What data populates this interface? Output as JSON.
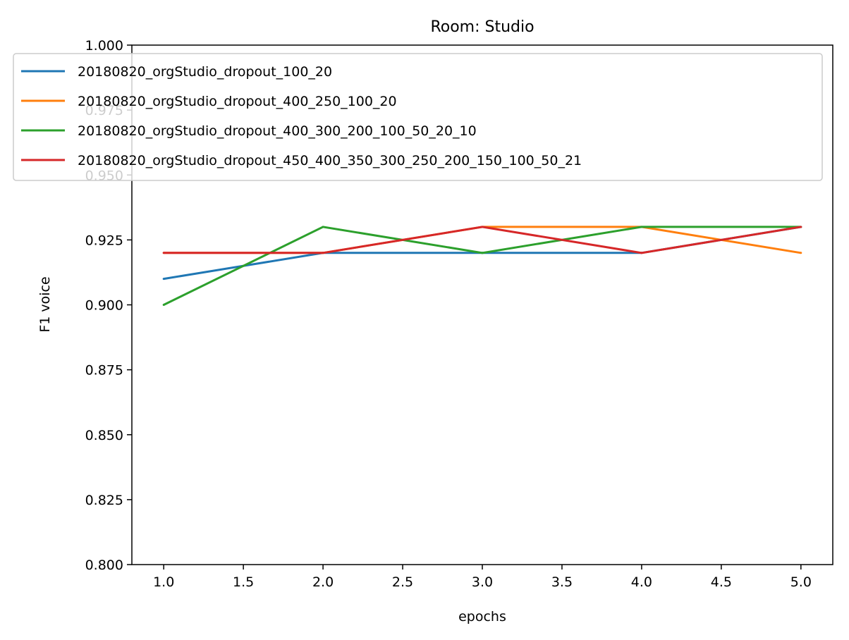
{
  "chart_data": {
    "type": "line",
    "title": "Room: Studio",
    "xlabel": "epochs",
    "ylabel": "F1 voice",
    "xlim": [
      0.8,
      5.2
    ],
    "ylim": [
      0.8,
      1.0
    ],
    "xticks": [
      "1.0",
      "1.5",
      "2.0",
      "2.5",
      "3.0",
      "3.5",
      "4.0",
      "4.5",
      "5.0"
    ],
    "yticks": [
      "0.800",
      "0.825",
      "0.850",
      "0.875",
      "0.900",
      "0.925",
      "0.950",
      "0.975",
      "1.000"
    ],
    "legend_position": "top",
    "grid": false,
    "x": [
      1,
      2,
      3,
      4,
      5
    ],
    "series": [
      {
        "name": "20180820_orgStudio_dropout_100_20",
        "color": "#1f77b4",
        "values": [
          0.91,
          0.92,
          0.92,
          0.92,
          0.93
        ]
      },
      {
        "name": "20180820_orgStudio_dropout_400_250_100_20",
        "color": "#ff7f0e",
        "values": [
          0.92,
          0.92,
          0.93,
          0.93,
          0.92
        ]
      },
      {
        "name": "20180820_orgStudio_dropout_400_300_200_100_50_20_10",
        "color": "#2ca02c",
        "values": [
          0.9,
          0.93,
          0.92,
          0.93,
          0.93
        ]
      },
      {
        "name": "20180820_orgStudio_dropout_450_400_350_300_250_200_150_100_50_21",
        "color": "#d62728",
        "values": [
          0.92,
          0.92,
          0.93,
          0.92,
          0.93
        ]
      }
    ]
  }
}
